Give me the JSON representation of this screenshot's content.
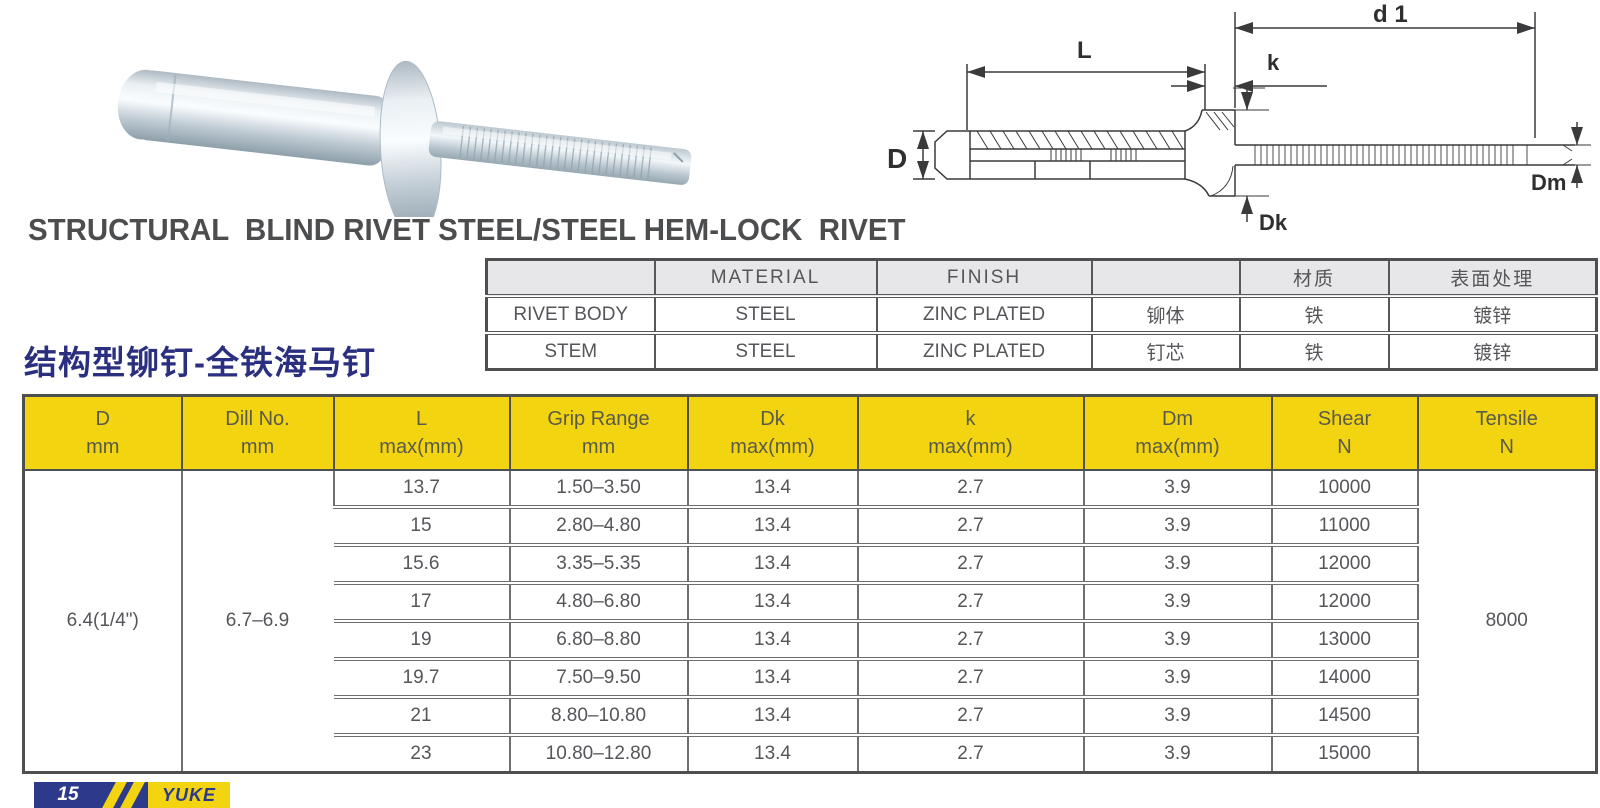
{
  "title": "STRUCTURAL  BLIND RIVET STEEL/STEEL HEM-LOCK  RIVET",
  "subtitle_cn": "结构型铆钉-全铁海马钉",
  "diagram": {
    "labels": {
      "L": "L",
      "d1": "d 1",
      "k": "k",
      "D": "D",
      "Dk": "Dk",
      "Dm": "Dm"
    }
  },
  "material_table": {
    "headers": [
      "",
      "MATERIAL",
      "FINISH",
      "",
      "材质",
      "表面处理"
    ],
    "rows": [
      [
        "RIVET BODY",
        "STEEL",
        "ZINC PLATED",
        "铆体",
        "铁",
        "镀锌"
      ],
      [
        "STEM",
        "STEEL",
        "ZINC PLATED",
        "钉芯",
        "铁",
        "镀锌"
      ]
    ]
  },
  "spec_table": {
    "headers": [
      {
        "key": "d",
        "line1": "D",
        "line2": "mm"
      },
      {
        "key": "dill-no",
        "line1": "Dill  No.",
        "line2": "mm"
      },
      {
        "key": "l",
        "line1": "L",
        "line2": "max(mm)"
      },
      {
        "key": "grip",
        "line1": "Grip Range",
        "line2": "mm"
      },
      {
        "key": "dk",
        "line1": "Dk",
        "line2": "max(mm)"
      },
      {
        "key": "k",
        "line1": "k",
        "line2": "max(mm)"
      },
      {
        "key": "dm",
        "line1": "Dm",
        "line2": "max(mm)"
      },
      {
        "key": "shear",
        "line1": "Shear",
        "line2": "N"
      },
      {
        "key": "tensile",
        "line1": "Tensile",
        "line2": "N"
      }
    ],
    "d_mm": "6.4(1/4\")",
    "dill_no": "6.7–6.9",
    "tensile": "8000",
    "rows": [
      [
        "13.7",
        "1.50–3.50",
        "13.4",
        "2.7",
        "3.9",
        "10000"
      ],
      [
        "15",
        "2.80–4.80",
        "13.4",
        "2.7",
        "3.9",
        "11000"
      ],
      [
        "15.6",
        "3.35–5.35",
        "13.4",
        "2.7",
        "3.9",
        "12000"
      ],
      [
        "17",
        "4.80–6.80",
        "13.4",
        "2.7",
        "3.9",
        "12000"
      ],
      [
        "19",
        "6.80–8.80",
        "13.4",
        "2.7",
        "3.9",
        "13000"
      ],
      [
        "19.7",
        "7.50–9.50",
        "13.4",
        "2.7",
        "3.9",
        "14000"
      ],
      [
        "21",
        "8.80–10.80",
        "13.4",
        "2.7",
        "3.9",
        "14500"
      ],
      [
        "23",
        "10.80–12.80",
        "13.4",
        "2.7",
        "3.9",
        "15000"
      ]
    ]
  },
  "footer_logo": {
    "number": "15",
    "brand": "YUKE"
  },
  "colors": {
    "header_yellow": "#f2d411",
    "navy": "#2b2f80",
    "title_gray": "#4c4d4f",
    "border_gray": "#57585a",
    "logo_navy": "#2d3a8c"
  }
}
